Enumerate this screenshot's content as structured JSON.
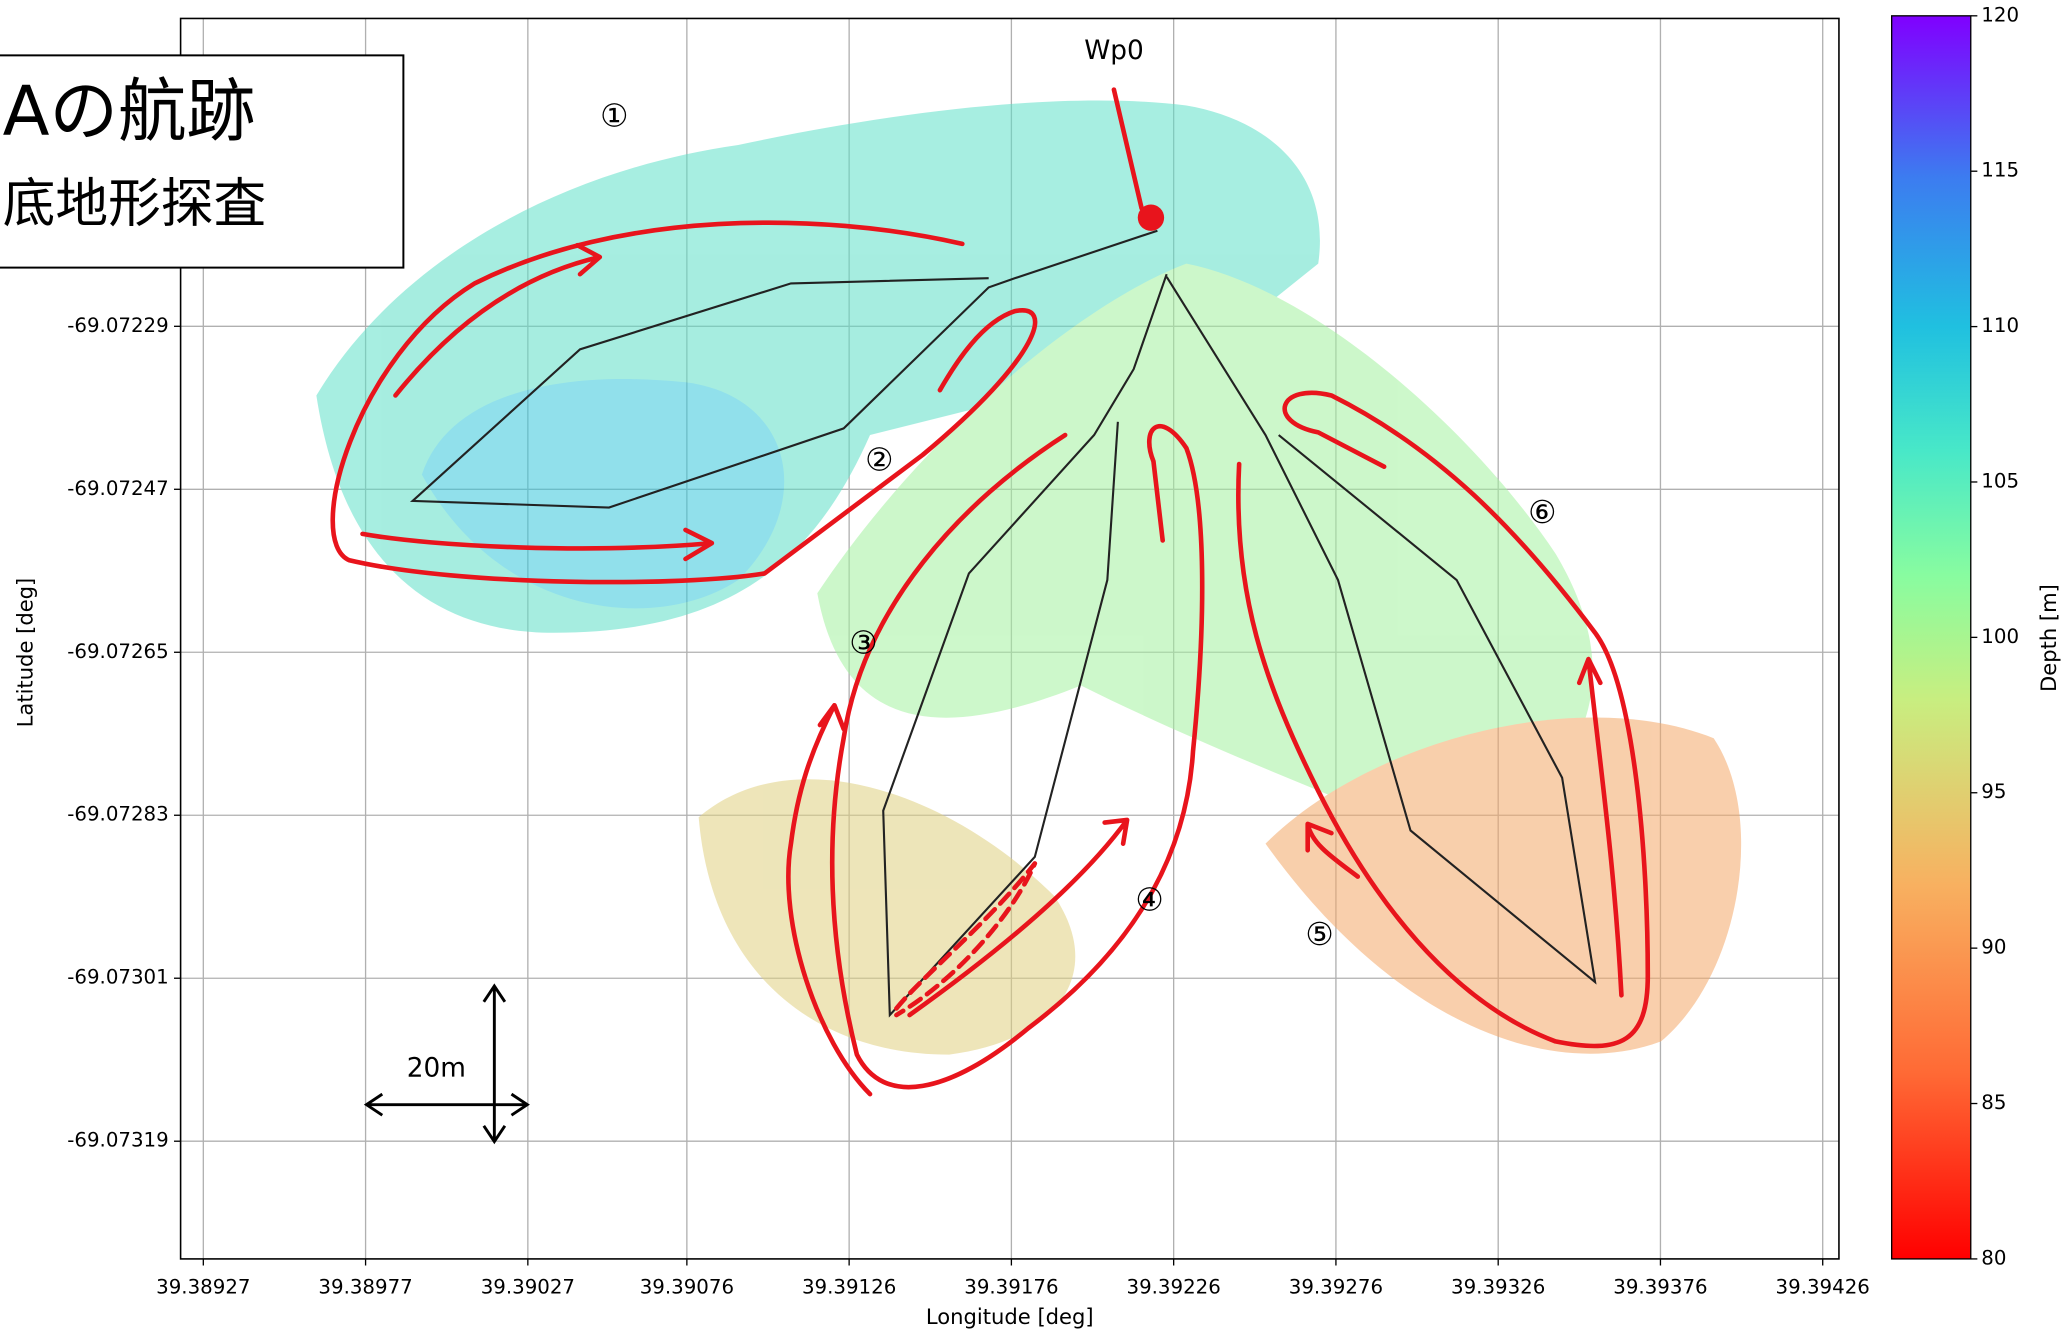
{
  "chart_data": {
    "type": "scatter",
    "xlabel": "Longitude [deg]",
    "ylabel": "Latitude [deg]",
    "xlim": [
      39.3892,
      39.39431
    ],
    "ylim": [
      -69.07332,
      -69.07195
    ],
    "xticks": [
      39.38927,
      39.38977,
      39.39027,
      39.39076,
      39.39126,
      39.39176,
      39.39226,
      39.39276,
      39.39326,
      39.39376,
      39.39426
    ],
    "yticks": [
      -69.07229,
      -69.07247,
      -69.07265,
      -69.07283,
      -69.07301,
      -69.07319
    ],
    "grid": true,
    "colorbar": {
      "label": "Depth [m]",
      "lim": [
        80,
        120
      ],
      "ticks": [
        80,
        85,
        90,
        95,
        100,
        105,
        110,
        115,
        120
      ]
    },
    "waypoint": {
      "label": "Wp0",
      "x": 39.39219,
      "y": -69.07217
    },
    "legs": [
      "①",
      "②",
      "③",
      "④",
      "⑤",
      "⑥"
    ],
    "scale_label": "20m",
    "title_box": [
      "Aの航跡",
      "底地形探査"
    ]
  }
}
